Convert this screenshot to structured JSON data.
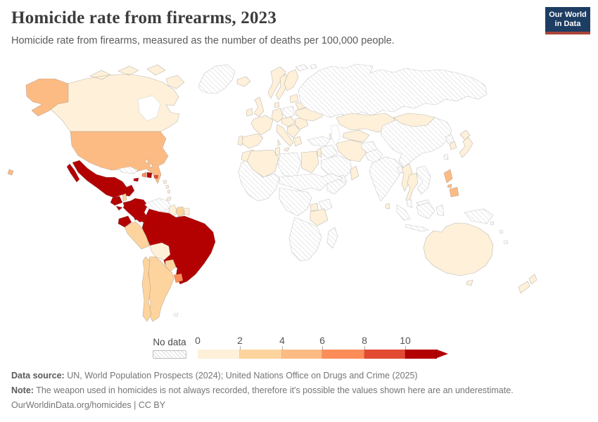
{
  "header": {
    "title": "Homicide rate from firearms, 2023",
    "subtitle": "Homicide rate from firearms, measured as the number of deaths per 100,000 people.",
    "logo": {
      "line1": "Our World",
      "line2": "in Data",
      "bg_color": "#1d3d63",
      "accent_color": "#a94438"
    }
  },
  "legend": {
    "no_data_label": "No data",
    "ticks": [
      "0",
      "2",
      "4",
      "6",
      "8",
      "10"
    ],
    "bins": [
      "0-2",
      "2-4",
      "4-6",
      "6-8",
      "8-10",
      "10+"
    ],
    "colors": [
      "#fef0d9",
      "#fdd49e",
      "#fdbb84",
      "#fc8d59",
      "#e34a33",
      "#b30000"
    ]
  },
  "map": {
    "no_data_fill": "diagonal-hatch",
    "regions": [
      {
        "id": "greenland",
        "name": "Greenland",
        "bin": "no-data"
      },
      {
        "id": "canada",
        "name": "Canada",
        "bin": "0-2"
      },
      {
        "id": "alaska",
        "name": "Alaska (United States)",
        "bin": "4-6"
      },
      {
        "id": "usa",
        "name": "United States",
        "bin": "4-6"
      },
      {
        "id": "hawaii",
        "name": "Hawaii (United States)",
        "bin": "4-6"
      },
      {
        "id": "mexico",
        "name": "Mexico",
        "bin": "10+"
      },
      {
        "id": "guatemala",
        "name": "Guatemala",
        "bin": "10+"
      },
      {
        "id": "belize",
        "name": "Belize",
        "bin": "2-4"
      },
      {
        "id": "honduras",
        "name": "Honduras",
        "bin": "10+"
      },
      {
        "id": "el-salvador",
        "name": "El Salvador",
        "bin": "10+"
      },
      {
        "id": "nicaragua",
        "name": "Nicaragua",
        "bin": "2-4"
      },
      {
        "id": "costa-rica",
        "name": "Costa Rica",
        "bin": "10+"
      },
      {
        "id": "panama",
        "name": "Panama",
        "bin": "10+"
      },
      {
        "id": "cuba",
        "name": "Cuba",
        "bin": "no-data"
      },
      {
        "id": "jamaica",
        "name": "Jamaica",
        "bin": "10+"
      },
      {
        "id": "haiti",
        "name": "Haiti",
        "bin": "6-8"
      },
      {
        "id": "dominican-republic",
        "name": "Dominican Republic",
        "bin": "10+"
      },
      {
        "id": "puerto-rico",
        "name": "Puerto Rico",
        "bin": "8-10"
      },
      {
        "id": "bahamas",
        "name": "Bahamas",
        "bin": "0-2"
      },
      {
        "id": "lesser-antilles",
        "name": "Lesser Antilles",
        "bin": "0-2"
      },
      {
        "id": "trinidad",
        "name": "Trinidad and Tobago",
        "bin": "0-2"
      },
      {
        "id": "colombia",
        "name": "Colombia",
        "bin": "10+"
      },
      {
        "id": "venezuela",
        "name": "Venezuela",
        "bin": "no-data"
      },
      {
        "id": "guyana",
        "name": "Guyana",
        "bin": "0-2"
      },
      {
        "id": "suriname",
        "name": "Suriname",
        "bin": "2-4"
      },
      {
        "id": "french-guiana",
        "name": "French Guiana",
        "bin": "0-2"
      },
      {
        "id": "ecuador",
        "name": "Ecuador",
        "bin": "10+"
      },
      {
        "id": "peru",
        "name": "Peru",
        "bin": "2-4"
      },
      {
        "id": "brazil",
        "name": "Brazil",
        "bin": "10+"
      },
      {
        "id": "bolivia",
        "name": "Bolivia",
        "bin": "0-2"
      },
      {
        "id": "paraguay",
        "name": "Paraguay",
        "bin": "2-4"
      },
      {
        "id": "uruguay",
        "name": "Uruguay",
        "bin": "6-8"
      },
      {
        "id": "argentina",
        "name": "Argentina",
        "bin": "2-4"
      },
      {
        "id": "chile",
        "name": "Chile",
        "bin": "2-4"
      },
      {
        "id": "falkland-islands",
        "name": "Falkland Islands",
        "bin": "no-data"
      },
      {
        "id": "iceland",
        "name": "Iceland",
        "bin": "0-2"
      },
      {
        "id": "ireland",
        "name": "Ireland",
        "bin": "0-2"
      },
      {
        "id": "uk",
        "name": "United Kingdom",
        "bin": "0-2"
      },
      {
        "id": "norway",
        "name": "Norway",
        "bin": "0-2"
      },
      {
        "id": "sweden",
        "name": "Sweden",
        "bin": "0-2"
      },
      {
        "id": "finland",
        "name": "Finland",
        "bin": "0-2"
      },
      {
        "id": "denmark",
        "name": "Denmark",
        "bin": "0-2"
      },
      {
        "id": "germany",
        "name": "Germany",
        "bin": "0-2"
      },
      {
        "id": "poland",
        "name": "Poland",
        "bin": "no-data"
      },
      {
        "id": "france",
        "name": "France",
        "bin": "0-2"
      },
      {
        "id": "spain",
        "name": "Spain",
        "bin": "0-2"
      },
      {
        "id": "portugal",
        "name": "Portugal",
        "bin": "0-2"
      },
      {
        "id": "italy",
        "name": "Italy",
        "bin": "0-2"
      },
      {
        "id": "central-europe",
        "name": "Central Europe",
        "bin": "0-2"
      },
      {
        "id": "balkans",
        "name": "Balkans",
        "bin": "0-2"
      },
      {
        "id": "greece",
        "name": "Greece",
        "bin": "0-2"
      },
      {
        "id": "romania",
        "name": "Romania and Bulgaria",
        "bin": "0-2"
      },
      {
        "id": "ukraine",
        "name": "Ukraine",
        "bin": "0-2"
      },
      {
        "id": "belarus",
        "name": "Belarus",
        "bin": "0-2"
      },
      {
        "id": "baltics",
        "name": "Baltic states",
        "bin": "0-2"
      },
      {
        "id": "svalbard",
        "name": "Svalbard",
        "bin": "no-data"
      },
      {
        "id": "russia",
        "name": "Russia",
        "bin": "no-data"
      },
      {
        "id": "turkey",
        "name": "Turkey",
        "bin": "no-data"
      },
      {
        "id": "caucasus",
        "name": "Caucasus",
        "bin": "0-2"
      },
      {
        "id": "syria-iraq",
        "name": "Syria and Iraq",
        "bin": "no-data"
      },
      {
        "id": "israel-jordan",
        "name": "Israel and Jordan",
        "bin": "0-2"
      },
      {
        "id": "saudi-arabia",
        "name": "Saudi Arabia",
        "bin": "no-data"
      },
      {
        "id": "yemen",
        "name": "Yemen",
        "bin": "no-data"
      },
      {
        "id": "oman",
        "name": "Oman",
        "bin": "0-2"
      },
      {
        "id": "iran",
        "name": "Iran",
        "bin": "0-2"
      },
      {
        "id": "kazakhstan",
        "name": "Kazakhstan",
        "bin": "0-2"
      },
      {
        "id": "uzbekistan",
        "name": "Uzbekistan and Turkmenistan",
        "bin": "0-2"
      },
      {
        "id": "afghanistan",
        "name": "Afghanistan",
        "bin": "no-data"
      },
      {
        "id": "pakistan",
        "name": "Pakistan",
        "bin": "no-data"
      },
      {
        "id": "india",
        "name": "India",
        "bin": "no-data"
      },
      {
        "id": "sri-lanka",
        "name": "Sri Lanka",
        "bin": "0-2"
      },
      {
        "id": "bangladesh",
        "name": "Bangladesh",
        "bin": "no-data"
      },
      {
        "id": "myanmar",
        "name": "Myanmar",
        "bin": "0-2"
      },
      {
        "id": "thailand",
        "name": "Thailand",
        "bin": "0-2"
      },
      {
        "id": "vietnam-laos-cambodia",
        "name": "Vietnam, Laos and Cambodia",
        "bin": "no-data"
      },
      {
        "id": "malaysia",
        "name": "Malaysia",
        "bin": "no-data"
      },
      {
        "id": "indonesia",
        "name": "Indonesia",
        "bin": "no-data"
      },
      {
        "id": "philippines",
        "name": "Philippines",
        "bin": "4-6"
      },
      {
        "id": "new-guinea",
        "name": "Papua New Guinea",
        "bin": "no-data"
      },
      {
        "id": "china",
        "name": "China",
        "bin": "no-data"
      },
      {
        "id": "mongolia",
        "name": "Mongolia",
        "bin": "0-2"
      },
      {
        "id": "north-korea",
        "name": "North Korea",
        "bin": "no-data"
      },
      {
        "id": "south-korea",
        "name": "South Korea",
        "bin": "0-2"
      },
      {
        "id": "japan",
        "name": "Japan",
        "bin": "0-2"
      },
      {
        "id": "taiwan",
        "name": "Taiwan",
        "bin": "no-data"
      },
      {
        "id": "morocco",
        "name": "Morocco",
        "bin": "0-2"
      },
      {
        "id": "algeria",
        "name": "Algeria",
        "bin": "0-2"
      },
      {
        "id": "tunisia",
        "name": "Tunisia",
        "bin": "0-2"
      },
      {
        "id": "libya",
        "name": "Libya",
        "bin": "no-data"
      },
      {
        "id": "egypt",
        "name": "Egypt",
        "bin": "0-2"
      },
      {
        "id": "west-africa",
        "name": "West Africa",
        "bin": "no-data"
      },
      {
        "id": "sahel",
        "name": "Sahel and Sudan",
        "bin": "no-data"
      },
      {
        "id": "somalia",
        "name": "Horn of Africa",
        "bin": "no-data"
      },
      {
        "id": "central-africa",
        "name": "Central Africa",
        "bin": "no-data"
      },
      {
        "id": "uganda",
        "name": "Uganda",
        "bin": "0-2"
      },
      {
        "id": "kenya",
        "name": "Kenya",
        "bin": "no-data"
      },
      {
        "id": "tanzania",
        "name": "Tanzania",
        "bin": "0-2"
      },
      {
        "id": "southern-africa",
        "name": "Southern Africa",
        "bin": "no-data"
      },
      {
        "id": "madagascar",
        "name": "Madagascar",
        "bin": "no-data"
      },
      {
        "id": "australia",
        "name": "Australia",
        "bin": "0-2"
      },
      {
        "id": "new-zealand",
        "name": "New Zealand",
        "bin": "0-2"
      },
      {
        "id": "pacific-islands",
        "name": "Pacific islands",
        "bin": "no-data"
      }
    ]
  },
  "footer": {
    "source_label": "Data source:",
    "source_text": " UN, World Population Prospects (2024); United Nations Office on Drugs and Crime (2025)",
    "note_label": "Note:",
    "note_text": " The weapon used in homicides is not always recorded, therefore it's possible the values shown here are an underestimate.",
    "url_text": "OurWorldinData.org/homicides | CC BY"
  }
}
